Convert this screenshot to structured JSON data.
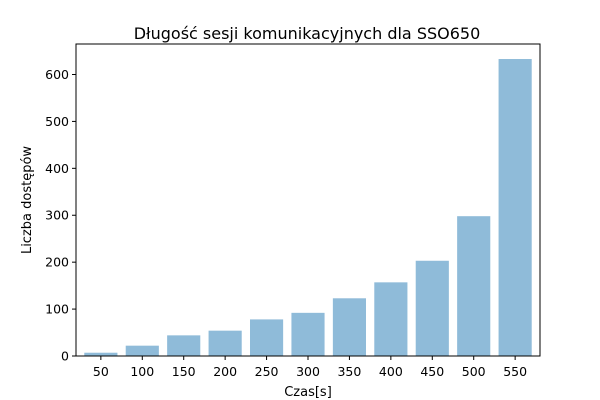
{
  "chart_data": {
    "type": "bar",
    "title": "Długość sesji komunikacyjnych dla SSO650",
    "xlabel": "Czas[s]",
    "ylabel": "Liczba dostępów",
    "categories": [
      "50",
      "100",
      "150",
      "200",
      "250",
      "300",
      "350",
      "400",
      "450",
      "500",
      "550"
    ],
    "values": [
      7,
      22,
      44,
      54,
      78,
      92,
      123,
      157,
      203,
      298,
      633
    ],
    "yticks": [
      0,
      100,
      200,
      300,
      400,
      500,
      600
    ],
    "ylim": [
      0,
      665
    ],
    "grid": false,
    "legend": "none",
    "bar_color": "#8fbbd9"
  }
}
